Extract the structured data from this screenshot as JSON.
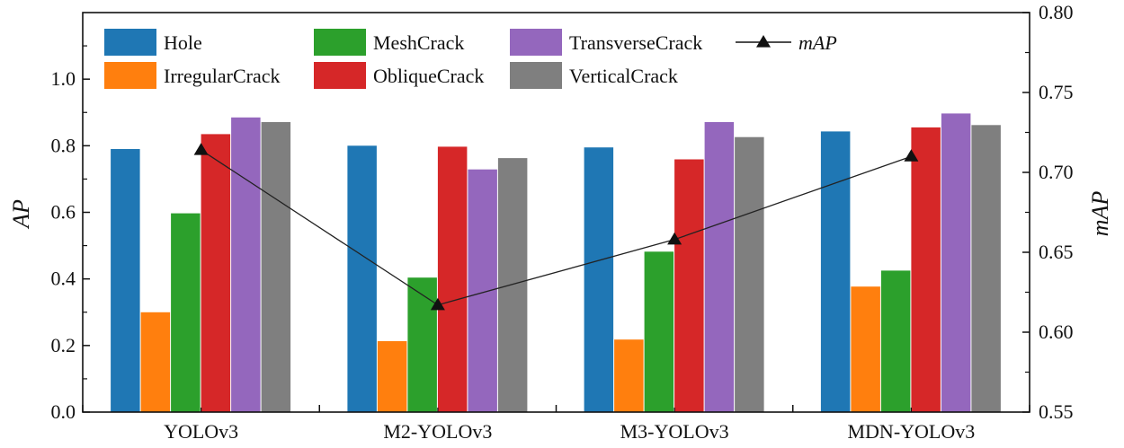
{
  "chart_data": {
    "type": "bar",
    "title": "",
    "categories": [
      "YOLOv3",
      "M2-YOLOv3",
      "M3-YOLOv3",
      "MDN-YOLOv3"
    ],
    "series": [
      {
        "name": "Hole",
        "color": "#1f77b4",
        "values": [
          0.79,
          0.8,
          0.795,
          0.843
        ]
      },
      {
        "name": "IrregularCrack",
        "color": "#ff7f0e",
        "values": [
          0.3,
          0.213,
          0.218,
          0.377
        ]
      },
      {
        "name": "MeshCrack",
        "color": "#2ca02c",
        "values": [
          0.597,
          0.404,
          0.482,
          0.425
        ]
      },
      {
        "name": "ObliqueCrack",
        "color": "#d62728",
        "values": [
          0.835,
          0.797,
          0.759,
          0.855
        ]
      },
      {
        "name": "TransverseCrack",
        "color": "#9467bd",
        "values": [
          0.885,
          0.729,
          0.871,
          0.897
        ]
      },
      {
        "name": "VerticalCrack",
        "color": "#7f7f7f",
        "values": [
          0.871,
          0.763,
          0.826,
          0.862
        ]
      }
    ],
    "line_series": {
      "name": "mAP",
      "color": "#222222",
      "values": [
        0.714,
        0.617,
        0.658,
        0.71
      ]
    },
    "xlabel": "",
    "ylabel": "AP",
    "y2label": "mAP",
    "ylim": [
      0,
      1.2
    ],
    "y2lim": [
      0.55,
      0.8
    ],
    "yticks": [
      "0.0",
      "0.2",
      "0.4",
      "0.6",
      "0.8",
      "1.0"
    ],
    "y2ticks": [
      "0.55",
      "0.60",
      "0.65",
      "0.70",
      "0.75",
      "0.80"
    ],
    "legend_position": "top-left",
    "grid": false
  }
}
